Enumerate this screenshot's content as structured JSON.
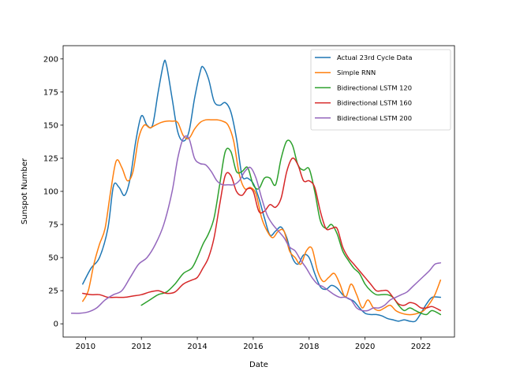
{
  "chart_data": {
    "type": "line",
    "xlabel": "Date",
    "ylabel": "Sunspot Number",
    "xlim": [
      2009.2,
      2023.2
    ],
    "ylim": [
      -10,
      210
    ],
    "xticks": [
      2010,
      2012,
      2014,
      2016,
      2018,
      2020,
      2022
    ],
    "yticks": [
      0,
      25,
      50,
      75,
      100,
      125,
      150,
      175,
      200
    ],
    "grid": false,
    "legend": "top-right",
    "series": [
      {
        "name": "Actual 23rd Cycle Data",
        "color": "#1f77b4",
        "x": [
          2009.9,
          2010.2,
          2010.5,
          2010.8,
          2011.0,
          2011.2,
          2011.4,
          2011.6,
          2011.8,
          2012.0,
          2012.2,
          2012.4,
          2012.6,
          2012.8,
          2012.9,
          2013.1,
          2013.3,
          2013.5,
          2013.7,
          2013.9,
          2014.1,
          2014.2,
          2014.4,
          2014.6,
          2014.8,
          2015.0,
          2015.2,
          2015.4,
          2015.6,
          2015.8,
          2016.0,
          2016.2,
          2016.4,
          2016.6,
          2016.8,
          2017.0,
          2017.2,
          2017.4,
          2017.6,
          2017.8,
          2018.0,
          2018.2,
          2018.4,
          2018.6,
          2018.8,
          2019.0,
          2019.2,
          2019.4,
          2019.6,
          2019.8,
          2020.0,
          2020.2,
          2020.4,
          2020.6,
          2020.8,
          2021.0,
          2021.2,
          2021.4,
          2021.6,
          2021.8,
          2022.0,
          2022.2,
          2022.4,
          2022.7
        ],
        "y": [
          30,
          42,
          50,
          72,
          104,
          103,
          97,
          110,
          138,
          157,
          150,
          150,
          175,
          197,
          195,
          170,
          145,
          138,
          145,
          170,
          190,
          194,
          185,
          168,
          165,
          167,
          160,
          140,
          112,
          110,
          106,
          95,
          80,
          67,
          70,
          73,
          65,
          50,
          45,
          52,
          50,
          38,
          28,
          26,
          29,
          27,
          22,
          19,
          17,
          12,
          8,
          7,
          7,
          6,
          4,
          3,
          2,
          3,
          2,
          2,
          8,
          15,
          20,
          20
        ]
      },
      {
        "name": "Simple RNN",
        "color": "#ff7f0e",
        "x": [
          2009.9,
          2010.1,
          2010.3,
          2010.5,
          2010.7,
          2010.9,
          2011.1,
          2011.3,
          2011.5,
          2011.7,
          2011.9,
          2012.1,
          2012.3,
          2012.5,
          2012.7,
          2012.9,
          2013.1,
          2013.3,
          2013.5,
          2013.7,
          2013.9,
          2014.1,
          2014.3,
          2014.5,
          2014.7,
          2014.9,
          2015.1,
          2015.3,
          2015.5,
          2015.7,
          2015.9,
          2016.1,
          2016.3,
          2016.5,
          2016.7,
          2016.9,
          2017.1,
          2017.3,
          2017.5,
          2017.7,
          2017.9,
          2018.1,
          2018.3,
          2018.5,
          2018.7,
          2018.9,
          2019.1,
          2019.3,
          2019.5,
          2019.7,
          2019.9,
          2020.1,
          2020.3,
          2020.5,
          2020.7,
          2020.9,
          2021.1,
          2021.3,
          2021.5,
          2021.7,
          2021.9,
          2022.1,
          2022.3,
          2022.5,
          2022.7
        ],
        "y": [
          17,
          25,
          45,
          60,
          72,
          100,
          123,
          118,
          108,
          115,
          140,
          150,
          148,
          150,
          152,
          153,
          153,
          152,
          142,
          140,
          147,
          152,
          154,
          154,
          154,
          153,
          150,
          138,
          113,
          102,
          103,
          98,
          80,
          70,
          65,
          70,
          70,
          55,
          50,
          45,
          55,
          57,
          40,
          32,
          35,
          38,
          30,
          20,
          30,
          22,
          12,
          18,
          12,
          10,
          12,
          14,
          10,
          8,
          7,
          7,
          8,
          10,
          15,
          22,
          33
        ]
      },
      {
        "name": "Bidirectional LSTM 120",
        "color": "#2ca02c",
        "x": [
          2012.0,
          2012.3,
          2012.6,
          2012.9,
          2013.2,
          2013.5,
          2013.8,
          2014.0,
          2014.2,
          2014.4,
          2014.6,
          2014.8,
          2015.0,
          2015.2,
          2015.4,
          2015.6,
          2015.8,
          2016.0,
          2016.2,
          2016.4,
          2016.6,
          2016.8,
          2017.0,
          2017.2,
          2017.4,
          2017.6,
          2017.8,
          2018.0,
          2018.2,
          2018.4,
          2018.6,
          2018.8,
          2019.0,
          2019.2,
          2019.4,
          2019.6,
          2019.8,
          2020.0,
          2020.2,
          2020.4,
          2020.6,
          2020.8,
          2021.0,
          2021.2,
          2021.4,
          2021.6,
          2021.8,
          2022.0,
          2022.2,
          2022.4,
          2022.7
        ],
        "y": [
          14,
          18,
          22,
          24,
          30,
          38,
          42,
          50,
          60,
          68,
          80,
          105,
          130,
          130,
          115,
          115,
          118,
          105,
          102,
          110,
          110,
          105,
          125,
          138,
          135,
          120,
          116,
          117,
          100,
          78,
          72,
          75,
          68,
          55,
          48,
          42,
          38,
          30,
          25,
          22,
          22,
          22,
          20,
          14,
          10,
          12,
          10,
          8,
          7,
          10,
          7
        ]
      },
      {
        "name": "Bidirectional LSTM 160",
        "color": "#d62728",
        "x": [
          2009.9,
          2010.2,
          2010.5,
          2010.8,
          2011.1,
          2011.4,
          2011.7,
          2012.0,
          2012.3,
          2012.6,
          2012.9,
          2013.2,
          2013.5,
          2013.8,
          2014.0,
          2014.2,
          2014.4,
          2014.6,
          2014.8,
          2015.0,
          2015.2,
          2015.4,
          2015.6,
          2015.8,
          2016.0,
          2016.2,
          2016.4,
          2016.6,
          2016.8,
          2017.0,
          2017.2,
          2017.4,
          2017.6,
          2017.8,
          2018.0,
          2018.2,
          2018.4,
          2018.6,
          2018.8,
          2019.0,
          2019.2,
          2019.4,
          2019.6,
          2019.8,
          2020.0,
          2020.2,
          2020.4,
          2020.6,
          2020.8,
          2021.0,
          2021.2,
          2021.4,
          2021.6,
          2021.8,
          2022.0,
          2022.2,
          2022.4,
          2022.7
        ],
        "y": [
          23,
          22,
          22,
          20,
          20,
          20,
          21,
          22,
          24,
          25,
          23,
          24,
          30,
          33,
          35,
          42,
          50,
          65,
          90,
          112,
          112,
          100,
          97,
          102,
          100,
          85,
          85,
          90,
          88,
          95,
          115,
          125,
          120,
          108,
          108,
          103,
          85,
          72,
          72,
          72,
          58,
          50,
          45,
          40,
          35,
          30,
          25,
          25,
          25,
          20,
          15,
          14,
          16,
          15,
          12,
          12,
          13,
          10
        ]
      },
      {
        "name": "Bidirectional LSTM 200",
        "color": "#9467bd",
        "x": [
          2009.5,
          2009.8,
          2010.1,
          2010.4,
          2010.7,
          2011.0,
          2011.3,
          2011.6,
          2011.9,
          2012.2,
          2012.5,
          2012.8,
          2013.1,
          2013.3,
          2013.5,
          2013.7,
          2013.9,
          2014.1,
          2014.3,
          2014.5,
          2014.7,
          2014.9,
          2015.1,
          2015.3,
          2015.5,
          2015.7,
          2015.9,
          2016.1,
          2016.3,
          2016.5,
          2016.7,
          2016.9,
          2017.1,
          2017.3,
          2017.5,
          2017.7,
          2017.9,
          2018.1,
          2018.3,
          2018.5,
          2018.7,
          2018.9,
          2019.1,
          2019.3,
          2019.5,
          2019.7,
          2019.9,
          2020.1,
          2020.3,
          2020.5,
          2020.7,
          2020.9,
          2021.1,
          2021.3,
          2021.5,
          2021.7,
          2021.9,
          2022.1,
          2022.3,
          2022.5,
          2022.7
        ],
        "y": [
          8,
          8,
          9,
          12,
          18,
          22,
          25,
          35,
          45,
          50,
          60,
          75,
          100,
          125,
          140,
          140,
          125,
          121,
          120,
          115,
          108,
          105,
          105,
          105,
          108,
          115,
          118,
          110,
          95,
          82,
          75,
          70,
          65,
          58,
          55,
          48,
          42,
          35,
          30,
          28,
          25,
          22,
          20,
          20,
          18,
          12,
          10,
          10,
          12,
          12,
          14,
          18,
          20,
          22,
          24,
          28,
          32,
          36,
          40,
          45,
          46
        ]
      }
    ]
  }
}
